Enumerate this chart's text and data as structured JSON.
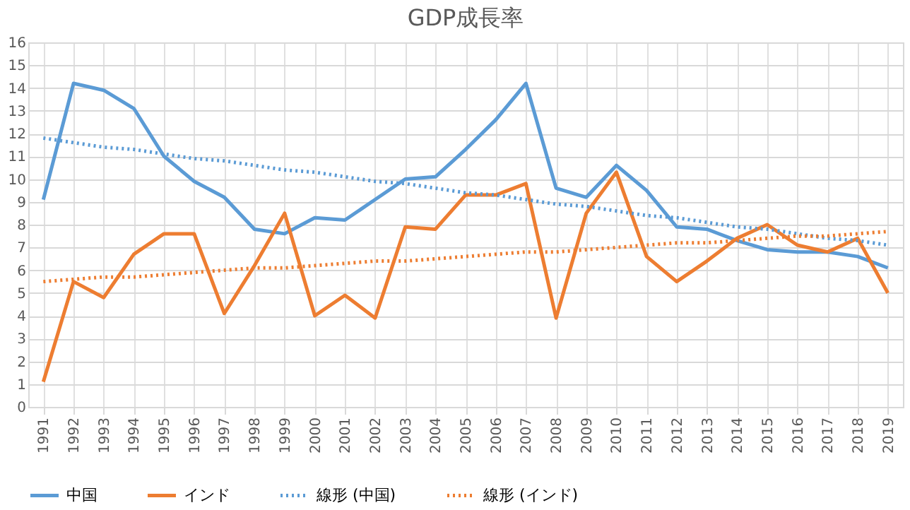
{
  "chart_data": {
    "type": "line",
    "title": "GDP成長率",
    "categories": [
      "1991",
      "1992",
      "1993",
      "1994",
      "1995",
      "1996",
      "1997",
      "1998",
      "1999",
      "2000",
      "2001",
      "2002",
      "2003",
      "2004",
      "2005",
      "2006",
      "2007",
      "2008",
      "2009",
      "2010",
      "2011",
      "2012",
      "2013",
      "2014",
      "2015",
      "2016",
      "2017",
      "2018",
      "2019"
    ],
    "series": [
      {
        "name": "中国",
        "color": "#5b9bd5",
        "values": [
          9.1,
          14.2,
          13.9,
          13.1,
          11.0,
          9.9,
          9.2,
          7.8,
          7.6,
          8.3,
          8.2,
          9.1,
          10.0,
          10.1,
          11.3,
          12.6,
          14.2,
          9.6,
          9.2,
          10.6,
          9.5,
          7.9,
          7.8,
          7.3,
          6.9,
          6.8,
          6.8,
          6.6,
          6.1
        ]
      },
      {
        "name": "インド",
        "color": "#ed7d31",
        "values": [
          1.1,
          5.5,
          4.8,
          6.7,
          7.6,
          7.6,
          4.1,
          6.2,
          8.5,
          4.0,
          4.9,
          3.9,
          7.9,
          7.8,
          9.3,
          9.3,
          9.8,
          3.9,
          8.5,
          10.3,
          6.6,
          5.5,
          6.4,
          7.4,
          8.0,
          7.1,
          6.8,
          7.4,
          5.0
        ]
      },
      {
        "name": "線形 (中国)",
        "color": "#5b9bd5",
        "type": "line",
        "line_style": "dotted",
        "values": [
          11.8,
          11.6,
          11.4,
          11.3,
          11.1,
          10.9,
          10.8,
          10.6,
          10.4,
          10.3,
          10.1,
          9.9,
          9.8,
          9.6,
          9.4,
          9.3,
          9.1,
          8.9,
          8.8,
          8.6,
          8.4,
          8.3,
          8.1,
          7.9,
          7.8,
          7.6,
          7.4,
          7.3,
          7.1
        ]
      },
      {
        "name": "線形 (インド)",
        "color": "#ed7d31",
        "type": "line",
        "line_style": "dotted",
        "values": [
          5.5,
          5.6,
          5.7,
          5.7,
          5.8,
          5.9,
          6.0,
          6.1,
          6.1,
          6.2,
          6.3,
          6.4,
          6.4,
          6.5,
          6.6,
          6.7,
          6.8,
          6.8,
          6.9,
          7.0,
          7.1,
          7.2,
          7.2,
          7.3,
          7.4,
          7.5,
          7.5,
          7.6,
          7.7
        ]
      }
    ],
    "ylim": [
      0,
      16
    ],
    "yticks": [
      0,
      1,
      2,
      3,
      4,
      5,
      6,
      7,
      8,
      9,
      10,
      11,
      12,
      13,
      14,
      15,
      16
    ],
    "grid": true,
    "legend": "bottom",
    "line_style": "solid",
    "marker": "none"
  }
}
